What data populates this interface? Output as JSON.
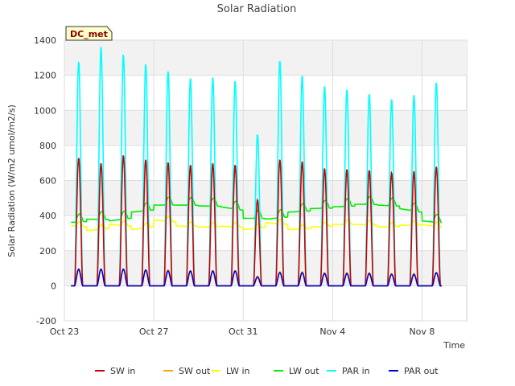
{
  "chart_data": {
    "type": "line",
    "title": "Solar Radiation",
    "xlabel": "Time",
    "ylabel": "Solar Radiation (W/m2 umol/m2/s)",
    "badge": "DC_met",
    "ylim": [
      -200,
      1400
    ],
    "yticks": [
      -200,
      0,
      200,
      400,
      600,
      800,
      1000,
      1200,
      1400
    ],
    "xlim": [
      "2023-10-23",
      "2023-11-10"
    ],
    "xticks": [
      {
        "date": "2023-10-23",
        "label": "Oct 23"
      },
      {
        "date": "2023-10-27",
        "label": "Oct 27"
      },
      {
        "date": "2023-10-31",
        "label": "Oct 31"
      },
      {
        "date": "2023-11-04",
        "label": "Nov 4"
      },
      {
        "date": "2023-11-08",
        "label": "Nov 8"
      }
    ],
    "grid": true,
    "legend_position": "bottom",
    "series_order": [
      "SW in",
      "SW out",
      "LW in",
      "LW out",
      "PAR in",
      "PAR out"
    ],
    "series_colors": {
      "SW in": "#cc0000",
      "SW out": "#ffa500",
      "LW in": "#ffff00",
      "LW out": "#00ee00",
      "PAR in": "#00ffff",
      "PAR out": "#0000cc"
    },
    "daily_peaks": {
      "dates": [
        "2023-10-23",
        "2023-10-24",
        "2023-10-25",
        "2023-10-26",
        "2023-10-27",
        "2023-10-28",
        "2023-10-29",
        "2023-10-30",
        "2023-10-31",
        "2023-11-01",
        "2023-11-02",
        "2023-11-03",
        "2023-11-04",
        "2023-11-05",
        "2023-11-06",
        "2023-11-07",
        "2023-11-08",
        "2023-11-09"
      ],
      "SW in": [
        730,
        700,
        745,
        720,
        705,
        690,
        700,
        690,
        490,
        720,
        710,
        670,
        665,
        660,
        645,
        655,
        680,
        0
      ],
      "SW out": [
        90,
        95,
        95,
        90,
        90,
        85,
        85,
        85,
        55,
        80,
        80,
        75,
        75,
        75,
        70,
        70,
        75,
        0
      ],
      "PAR in": [
        1280,
        1365,
        1320,
        1265,
        1225,
        1185,
        1190,
        1170,
        865,
        1285,
        1200,
        1140,
        1120,
        1095,
        1065,
        1090,
        1160,
        0
      ],
      "PAR out": [
        95,
        95,
        95,
        90,
        85,
        85,
        85,
        85,
        50,
        75,
        75,
        70,
        70,
        70,
        65,
        65,
        75,
        0
      ]
    },
    "daily_levels": {
      "LW in": [
        345,
        315,
        350,
        320,
        375,
        340,
        335,
        340,
        320,
        360,
        320,
        335,
        350,
        350,
        335,
        345,
        350,
        285
      ],
      "LW out": [
        360,
        380,
        370,
        420,
        460,
        460,
        455,
        450,
        385,
        380,
        420,
        440,
        450,
        465,
        460,
        440,
        370,
        330
      ]
    }
  }
}
